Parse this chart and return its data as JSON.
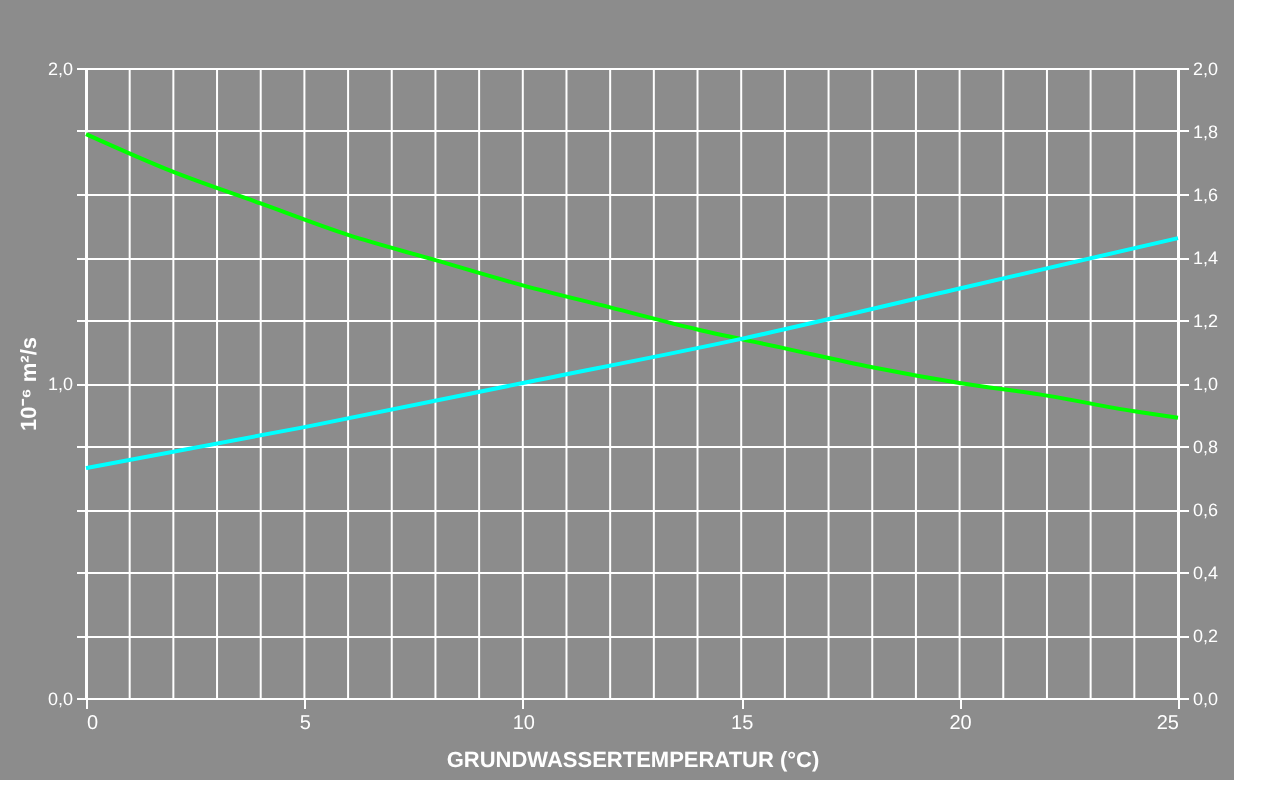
{
  "chart_data": {
    "type": "line",
    "xlabel": "GRUNDWASSERTEMPERATUR (°C)",
    "ylabel": "10⁻⁶ m²/s",
    "xlim": [
      0,
      25
    ],
    "xticks": [
      0,
      5,
      10,
      15,
      20,
      25
    ],
    "ylim": [
      0,
      2
    ],
    "yticks": [
      {
        "value": 0,
        "label": "0,0"
      },
      {
        "value": 0.2,
        "label": null
      },
      {
        "value": 0.4,
        "label": null
      },
      {
        "value": 0.6,
        "label": null
      },
      {
        "value": 0.8,
        "label": null
      },
      {
        "value": 1,
        "label": "1,0"
      },
      {
        "value": 1.2,
        "label": null
      },
      {
        "value": 1.4,
        "label": null
      },
      {
        "value": 1.6,
        "label": null
      },
      {
        "value": 1.8,
        "label": null
      },
      {
        "value": 2,
        "label": "2,0"
      }
    ],
    "y2lim": [
      0,
      2
    ],
    "y2ticks": [
      {
        "value": 0,
        "label": "0,0"
      },
      {
        "value": 0.2,
        "label": "0,2"
      },
      {
        "value": 0.4,
        "label": "0,4"
      },
      {
        "value": 0.6,
        "label": "0,6"
      },
      {
        "value": 0.8,
        "label": "0,8"
      },
      {
        "value": 1,
        "label": "1,0"
      },
      {
        "value": 1.2,
        "label": "1,2"
      },
      {
        "value": 1.4,
        "label": "1,4"
      },
      {
        "value": 1.6,
        "label": "1,6"
      },
      {
        "value": 1.8,
        "label": "1,8"
      },
      {
        "value": 2,
        "label": "2,0"
      }
    ],
    "grid": true,
    "legend": false,
    "marker": "none",
    "line_style": "solid",
    "series": [
      {
        "color": "#00ff00",
        "x": [
          0,
          2,
          4,
          6,
          8,
          10,
          12,
          14,
          16,
          18,
          20,
          22,
          24,
          25
        ],
        "values": [
          1.79,
          1.67,
          1.57,
          1.47,
          1.39,
          1.31,
          1.24,
          1.17,
          1.11,
          1.05,
          1.0,
          0.96,
          0.91,
          0.89
        ]
      },
      {
        "color": "#00ffff",
        "x": [
          0,
          5,
          10,
          15,
          20,
          25
        ],
        "values": [
          0.73,
          0.86,
          1.0,
          1.14,
          1.3,
          1.46
        ]
      }
    ]
  }
}
